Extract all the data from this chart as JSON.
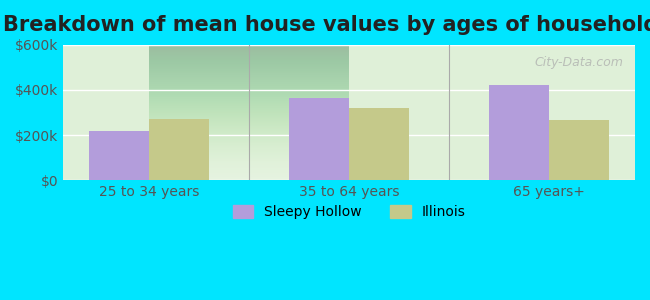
{
  "title": "Breakdown of mean house values by ages of householders",
  "categories": [
    "25 to 34 years",
    "35 to 64 years",
    "65 years+"
  ],
  "sleepy_hollow": [
    220000,
    365000,
    420000
  ],
  "illinois": [
    270000,
    320000,
    265000
  ],
  "bar_color_sh": "#b39ddb",
  "bar_color_il": "#c5c98a",
  "ylim": [
    0,
    600000
  ],
  "yticks": [
    0,
    200000,
    400000,
    600000
  ],
  "ytick_labels": [
    "$0",
    "$200k",
    "$400k",
    "$600k"
  ],
  "legend_sh": "Sleepy Hollow",
  "legend_il": "Illinois",
  "bg_outer": "#00e5ff",
  "bg_inner_top": "#e8f5e9",
  "bg_inner_bottom": "#f0f9e8",
  "title_fontsize": 15,
  "tick_fontsize": 10,
  "legend_fontsize": 10
}
